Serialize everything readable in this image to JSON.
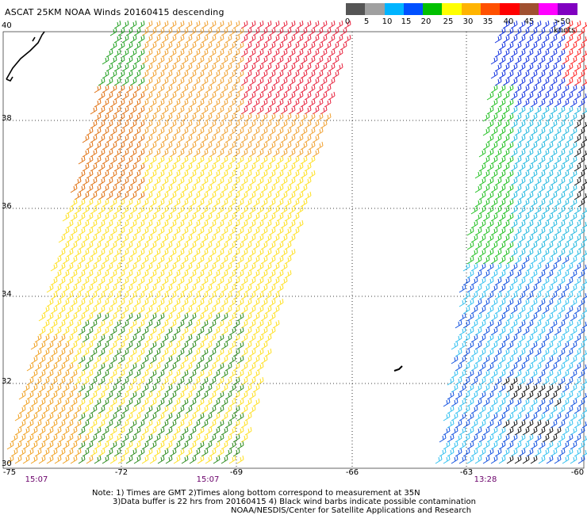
{
  "title": "ASCAT 25KM NOAA Winds 20160415 descending",
  "legend": {
    "labels": [
      "0",
      "5",
      "10",
      "15",
      "20",
      "25",
      "30",
      "35",
      "40",
      "45",
      ">50 knots"
    ],
    "colors": [
      "#555555",
      "#a0a0a0",
      "#00b4ff",
      "#0050ff",
      "#00c000",
      "#ffff00",
      "#ffb400",
      "#ff5000",
      "#ff0000",
      "#a05030",
      "#ff00ff",
      "#8000c0"
    ]
  },
  "map": {
    "lon_range": [
      -75,
      -60
    ],
    "lat_range": [
      30,
      40
    ],
    "lat_labels": [
      "40",
      "38",
      "36",
      "34",
      "32",
      "30"
    ],
    "lon_labels": [
      "-75",
      "-72",
      "-69",
      "-66",
      "-63",
      "-60"
    ],
    "times": [
      "15:07",
      "15:07",
      "13:28"
    ]
  },
  "notes": {
    "line1": "Note: 1) Times are GMT 2)Times along bottom correspond to measurement at 35N",
    "line2": "3)Data buffer is 22 hrs from 20160415 4) Black wind barbs indicate possible contamination",
    "line3": "NOAA/NESDIS/Center for Satellite Applications and Research"
  }
}
